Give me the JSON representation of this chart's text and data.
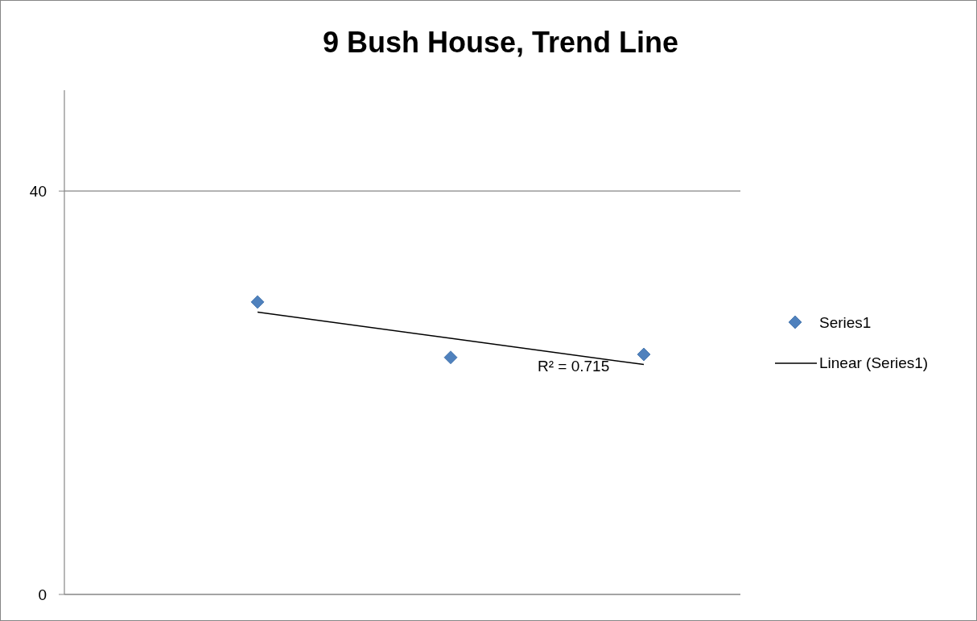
{
  "chart_data": {
    "type": "scatter",
    "title": "9 Bush House, Trend Line",
    "categories": [
      null,
      null,
      null
    ],
    "ylim": [
      0,
      50
    ],
    "yticks": [
      0,
      40
    ],
    "tick_labels": "y",
    "grid": "y",
    "legend": "right",
    "marker": "diamond",
    "series": [
      {
        "name": "Series1",
        "color": "#4f81bd",
        "values": [
          29,
          23.5,
          23.8
        ]
      },
      {
        "name": "Linear (Series1)",
        "type": "line",
        "color": "#000000",
        "values": [
          28.0,
          25.4,
          22.8
        ],
        "marker": "none",
        "line_style": "solid"
      }
    ],
    "annotations": [
      "R² = 0.715"
    ]
  }
}
